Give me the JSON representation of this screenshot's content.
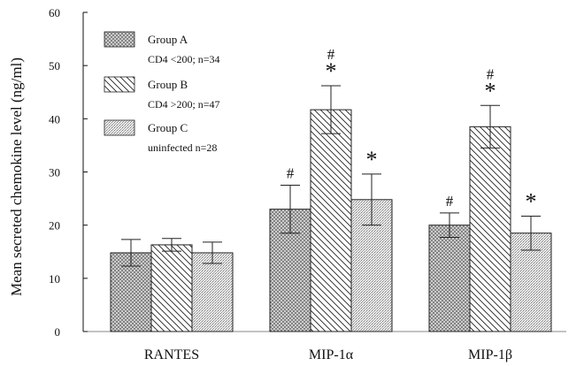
{
  "chart_data": {
    "type": "bar",
    "title": "",
    "ylabel": "Mean secreted chemokine level (ng/ml)",
    "xlabel": "",
    "ylim": [
      0,
      60
    ],
    "yticks": [
      0,
      10,
      20,
      30,
      40,
      50,
      60
    ],
    "categories": [
      "RANTES",
      "MIP-1α",
      "MIP-1β"
    ],
    "series": [
      {
        "name": "Group A",
        "sublabel": "CD4 <200; n=34",
        "pattern": "crosshatch",
        "values": [
          14.8,
          23.0,
          20.0
        ],
        "errors": [
          2.5,
          4.5,
          2.3
        ],
        "annotations": [
          "",
          "#",
          "#"
        ]
      },
      {
        "name": "Group B",
        "sublabel": "CD4 >200; n=47",
        "pattern": "diagonal",
        "values": [
          16.3,
          41.7,
          38.5
        ],
        "errors": [
          1.2,
          4.5,
          4.0
        ],
        "annotations": [
          "",
          "#\n*",
          "#\n*"
        ]
      },
      {
        "name": "Group C",
        "sublabel": "uninfected n=28",
        "pattern": "stipple",
        "values": [
          14.8,
          24.8,
          18.5
        ],
        "errors": [
          2.0,
          4.8,
          3.2
        ],
        "annotations": [
          "",
          "*",
          "*"
        ]
      }
    ],
    "grid": false,
    "legend_position": "top-left"
  }
}
